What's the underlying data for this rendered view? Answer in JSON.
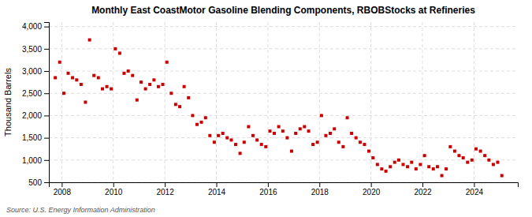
{
  "chart_data": {
    "type": "scatter",
    "title": "Monthly East CoastMotor Gasoline Blending Components, RBOBStocks at Refineries",
    "y_label": "Thousand Barrels",
    "annotation": "Source: U.S. Energy Information Administration",
    "color": "#cc0000",
    "marker": "square",
    "grid": true,
    "xlim": [
      2007.5,
      2025.7
    ],
    "ylim": [
      500,
      4100
    ],
    "xticks": [
      2008,
      2010,
      2012,
      2014,
      2016,
      2018,
      2020,
      2022,
      2024
    ],
    "yticks": [
      500,
      {
        "value": 1000,
        "label": "1,000"
      },
      {
        "value": 1500,
        "label": "1,500"
      },
      {
        "value": 2000,
        "label": "2,000"
      },
      {
        "value": 2500,
        "label": "2,500"
      },
      {
        "value": 3000,
        "label": "3,000"
      },
      {
        "value": 3500,
        "label": "3,500"
      },
      {
        "value": 4000,
        "label": "4,000"
      }
    ],
    "x": [
      2007.75,
      2007.92,
      2008.08,
      2008.25,
      2008.42,
      2008.58,
      2008.75,
      2008.92,
      2009.08,
      2009.25,
      2009.42,
      2009.58,
      2009.75,
      2009.92,
      2010.08,
      2010.25,
      2010.42,
      2010.58,
      2010.75,
      2010.92,
      2011.08,
      2011.25,
      2011.42,
      2011.58,
      2011.75,
      2011.92,
      2012.08,
      2012.25,
      2012.42,
      2012.58,
      2012.75,
      2012.92,
      2013.08,
      2013.25,
      2013.42,
      2013.58,
      2013.75,
      2013.92,
      2014.08,
      2014.25,
      2014.42,
      2014.58,
      2014.75,
      2014.92,
      2015.08,
      2015.25,
      2015.42,
      2015.58,
      2015.75,
      2015.92,
      2016.08,
      2016.25,
      2016.42,
      2016.58,
      2016.75,
      2016.92,
      2017.08,
      2017.25,
      2017.42,
      2017.58,
      2017.75,
      2017.92,
      2018.08,
      2018.25,
      2018.42,
      2018.58,
      2018.75,
      2018.92,
      2019.08,
      2019.25,
      2019.42,
      2019.58,
      2019.75,
      2019.92,
      2020.08,
      2020.25,
      2020.42,
      2020.58,
      2020.75,
      2020.92,
      2021.08,
      2021.25,
      2021.42,
      2021.58,
      2021.75,
      2021.92,
      2022.08,
      2022.25,
      2022.42,
      2022.58,
      2022.75,
      2022.92,
      2023.08,
      2023.25,
      2023.42,
      2023.58,
      2023.75,
      2023.92,
      2024.08,
      2024.25,
      2024.42,
      2024.58,
      2024.75,
      2024.92,
      2025.08
    ],
    "values": [
      2850,
      3200,
      2500,
      2950,
      2850,
      2800,
      2700,
      2300,
      3700,
      2900,
      2850,
      2600,
      2650,
      2600,
      3500,
      3400,
      2950,
      3000,
      2900,
      2350,
      2750,
      2600,
      2700,
      2800,
      2650,
      2700,
      3200,
      2500,
      2250,
      2200,
      2650,
      2400,
      2000,
      1800,
      1850,
      1950,
      1550,
      1400,
      1550,
      1600,
      1500,
      1450,
      1350,
      1150,
      1400,
      1750,
      1550,
      1450,
      1350,
      1300,
      1650,
      1600,
      1750,
      1650,
      1500,
      1200,
      1600,
      1700,
      1750,
      1650,
      1350,
      1400,
      2000,
      1550,
      1600,
      1700,
      1400,
      1300,
      1950,
      1600,
      1500,
      1400,
      1350,
      1200,
      1050,
      900,
      800,
      750,
      850,
      950,
      1000,
      900,
      850,
      950,
      800,
      900,
      1100,
      850,
      800,
      850,
      650,
      800,
      1300,
      1200,
      1100,
      1050,
      950,
      1000,
      1250,
      1200,
      1100,
      1000,
      900,
      950,
      650
    ]
  }
}
